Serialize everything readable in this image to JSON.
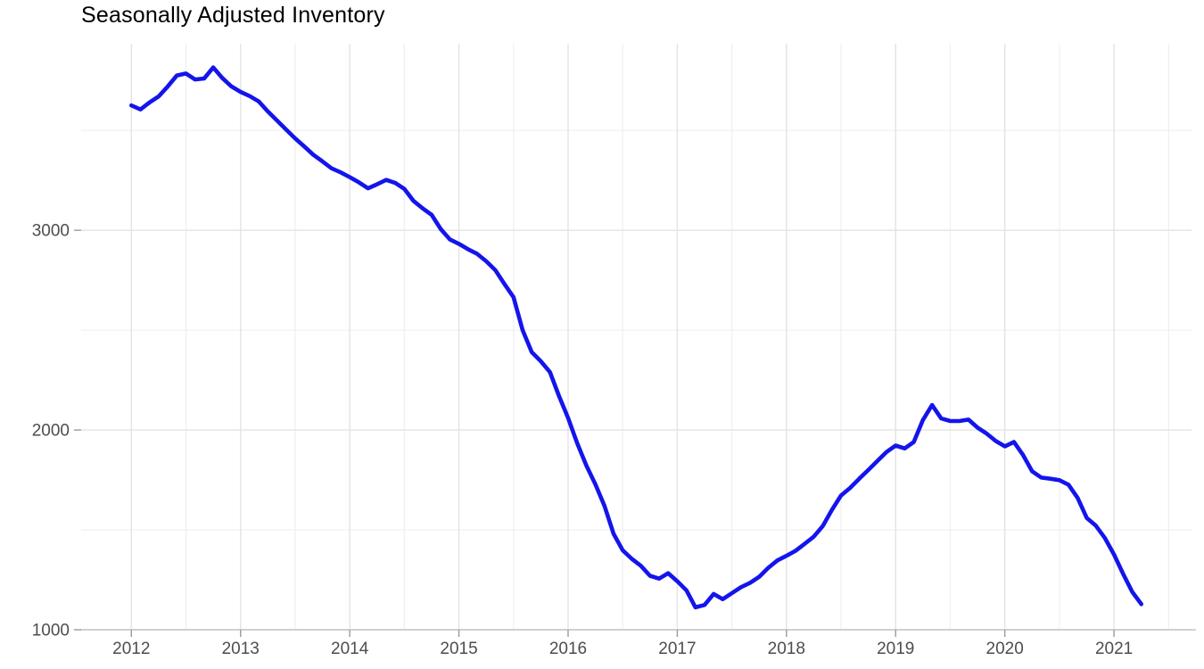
{
  "title": "Seasonally Adjusted Inventory",
  "chart_data": {
    "type": "line",
    "title": "Seasonally Adjusted Inventory",
    "xlabel": "",
    "ylabel": "",
    "legend": "none",
    "grid": "major+minor",
    "x_tick_labels": [
      "2012",
      "2013",
      "2014",
      "2015",
      "2016",
      "2017",
      "2018",
      "2019",
      "2020",
      "2021"
    ],
    "x_ticks": [
      2012,
      2013,
      2014,
      2015,
      2016,
      2017,
      2018,
      2019,
      2020,
      2021
    ],
    "x_minor_ticks": [
      2012.5,
      2013.5,
      2014.5,
      2015.5,
      2016.5,
      2017.5,
      2018.5,
      2019.5,
      2020.5,
      2021.5
    ],
    "y_tick_labels": [
      "1000",
      "2000",
      "3000"
    ],
    "y_ticks": [
      1000,
      2000,
      3000
    ],
    "y_minor_ticks": [
      1500,
      2500,
      3500
    ],
    "xlim": [
      2011.54,
      2021.71
    ],
    "ylim": [
      1000,
      3934
    ],
    "series": [
      {
        "name": "Seasonally Adjusted Inventory",
        "start": "2012-01",
        "frequency": "monthly",
        "values": [
          3625,
          3605,
          3640,
          3670,
          3720,
          3775,
          3785,
          3755,
          3760,
          3815,
          3762,
          3720,
          3693,
          3672,
          3645,
          3595,
          3550,
          3505,
          3460,
          3420,
          3378,
          3345,
          3310,
          3290,
          3266,
          3240,
          3210,
          3230,
          3252,
          3237,
          3207,
          3147,
          3110,
          3077,
          3006,
          2954,
          2932,
          2905,
          2882,
          2845,
          2800,
          2731,
          2665,
          2500,
          2390,
          2344,
          2290,
          2170,
          2060,
          1934,
          1823,
          1728,
          1620,
          1480,
          1398,
          1355,
          1320,
          1270,
          1256,
          1283,
          1243,
          1198,
          1112,
          1124,
          1179,
          1153,
          1183,
          1213,
          1235,
          1265,
          1310,
          1347,
          1370,
          1395,
          1430,
          1466,
          1520,
          1600,
          1672,
          1710,
          1756,
          1800,
          1845,
          1890,
          1922,
          1908,
          1940,
          2050,
          2125,
          2058,
          2045,
          2045,
          2052,
          2012,
          1982,
          1945,
          1918,
          1940,
          1875,
          1793,
          1762,
          1756,
          1749,
          1726,
          1660,
          1560,
          1521,
          1459,
          1377,
          1280,
          1190,
          1128
        ]
      }
    ],
    "style": {
      "line_color": "#1414EC",
      "grid_major_color": "#E3E3E3",
      "grid_minor_color": "#F0F0F0",
      "axis_line_color": "#C6C6C6",
      "tick_mark_color": "#9A9A9A",
      "tick_label_color": "#4D4D4D",
      "title_color": "#000000",
      "background_color": "#FFFFFF"
    }
  }
}
